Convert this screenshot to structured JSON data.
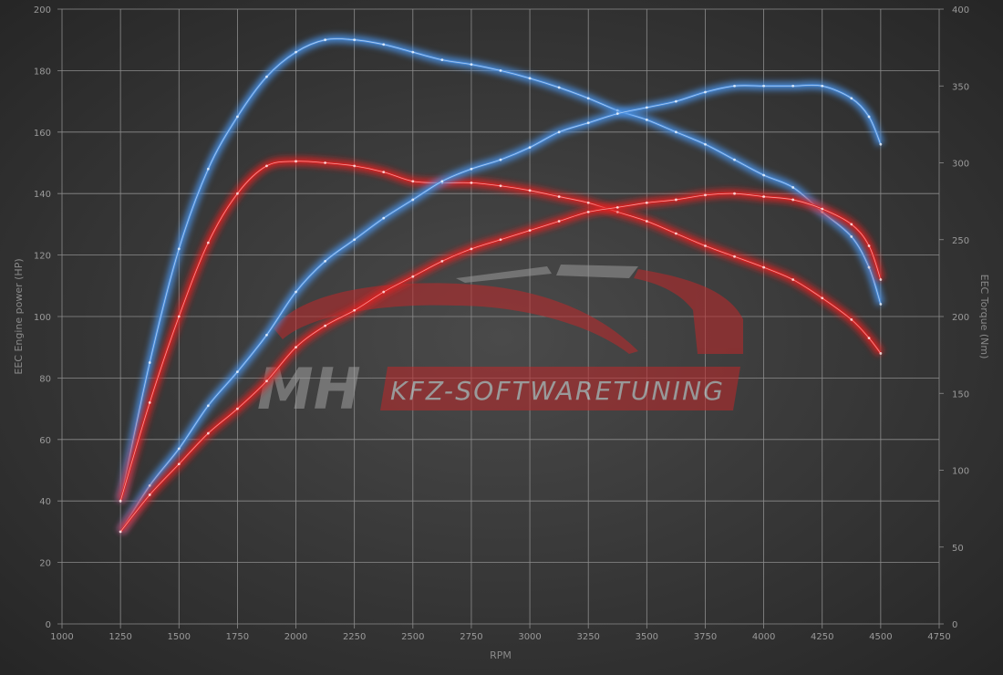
{
  "chart_data": {
    "type": "line",
    "title": "",
    "xlabel": "RPM",
    "ylabel": "EEC Engine power (HP)",
    "ylabel_right": "EEC Torque (Nm)",
    "xlim": [
      1000,
      4750
    ],
    "ylim": [
      0,
      200
    ],
    "ylim_right": [
      0,
      400
    ],
    "x_ticks": [
      1000,
      1250,
      1500,
      1750,
      2000,
      2250,
      2500,
      2750,
      3000,
      3250,
      3500,
      3750,
      4000,
      4250,
      4500,
      4750
    ],
    "y_ticks": [
      0,
      20,
      40,
      60,
      80,
      100,
      120,
      140,
      160,
      180,
      200
    ],
    "y_ticks_right": [
      0,
      50,
      100,
      150,
      200,
      250,
      300,
      350,
      400
    ],
    "grid": true,
    "x": [
      1250,
      1375,
      1500,
      1625,
      1750,
      1875,
      2000,
      2125,
      2250,
      2375,
      2500,
      2625,
      2750,
      2875,
      3000,
      3125,
      3250,
      3375,
      3500,
      3625,
      3750,
      3875,
      4000,
      4125,
      4250,
      4375,
      4450,
      4500
    ],
    "series": [
      {
        "axis": "right",
        "color": "#4a90e2",
        "values": [
          80,
          170,
          244,
          296,
          330,
          356,
          372,
          380,
          380,
          377,
          372,
          367,
          364,
          360,
          355,
          349,
          342,
          334,
          328,
          320,
          312,
          302,
          292,
          284,
          268,
          252,
          232,
          208
        ]
      },
      {
        "axis": "right",
        "color": "#e02020",
        "values": [
          80,
          144,
          200,
          248,
          280,
          298,
          301,
          300,
          298,
          294,
          288,
          287,
          287,
          285,
          282,
          278,
          274,
          268,
          262,
          254,
          246,
          239,
          232,
          224,
          212,
          198,
          186,
          176
        ]
      },
      {
        "axis": "left",
        "color": "#4a90e2",
        "values": [
          30,
          45,
          57,
          71,
          82,
          94,
          108,
          118,
          125,
          132,
          138,
          144,
          148,
          151,
          155,
          160,
          163,
          166,
          168,
          170,
          173,
          175,
          175,
          175,
          175,
          171,
          165,
          156
        ]
      },
      {
        "axis": "left",
        "color": "#e02020",
        "values": [
          30,
          42,
          52,
          62,
          70,
          79,
          90,
          97,
          102,
          108,
          113,
          118,
          122,
          125,
          128,
          131,
          134,
          135.5,
          137,
          138,
          139.5,
          140,
          139,
          138,
          135,
          130,
          123,
          112
        ]
      }
    ]
  },
  "watermark": {
    "logo_text": "MH",
    "logo_tagline": "KFZ-SOFTWARETUNING"
  }
}
